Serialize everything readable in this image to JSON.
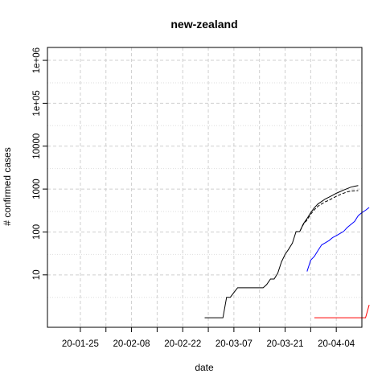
{
  "chart_data": {
    "type": "line",
    "title": "new-zealand",
    "xlabel": "date",
    "ylabel": "# confirmed cases",
    "x_axis": {
      "type": "date",
      "range": [
        "2020-01-16",
        "2020-04-11"
      ],
      "ticks": [
        {
          "value": "2020-01-25",
          "label": "20-01-25"
        },
        {
          "value": "2020-02-08",
          "label": "20-02-08"
        },
        {
          "value": "2020-02-22",
          "label": "20-02-22"
        },
        {
          "value": "2020-03-07",
          "label": "20-03-07"
        },
        {
          "value": "2020-03-21",
          "label": "20-03-21"
        },
        {
          "value": "2020-04-04",
          "label": "20-04-04"
        }
      ],
      "minor_ticks": [
        "2020-02-01",
        "2020-02-15",
        "2020-02-29",
        "2020-03-14",
        "2020-03-28"
      ]
    },
    "y_axis": {
      "scale": "log10",
      "range": [
        0.6,
        2000000
      ],
      "ticks": [
        {
          "value": 10,
          "label": "10"
        },
        {
          "value": 100,
          "label": "100"
        },
        {
          "value": 1000,
          "label": "1000"
        },
        {
          "value": 10000,
          "label": "10000"
        },
        {
          "value": 100000,
          "label": "1e+05"
        },
        {
          "value": 1000000,
          "label": "1e+06"
        }
      ],
      "minor_grid": [
        3,
        30,
        300,
        3000,
        30000,
        300000
      ]
    },
    "grid": true,
    "series": [
      {
        "color": "#000000",
        "style": "solid",
        "points": [
          [
            "2020-02-28",
            1
          ],
          [
            "2020-03-04",
            1
          ],
          [
            "2020-03-05",
            3
          ],
          [
            "2020-03-06",
            3
          ],
          [
            "2020-03-08",
            5
          ],
          [
            "2020-03-15",
            5
          ],
          [
            "2020-03-16",
            6
          ],
          [
            "2020-03-17",
            8
          ],
          [
            "2020-03-18",
            8
          ],
          [
            "2020-03-19",
            11
          ],
          [
            "2020-03-20",
            20
          ],
          [
            "2020-03-21",
            30
          ],
          [
            "2020-03-22",
            40
          ],
          [
            "2020-03-23",
            55
          ],
          [
            "2020-03-24",
            102
          ],
          [
            "2020-03-25",
            102
          ],
          [
            "2020-03-26",
            155
          ],
          [
            "2020-03-27",
            205
          ],
          [
            "2020-03-28",
            283
          ],
          [
            "2020-03-29",
            368
          ],
          [
            "2020-03-30",
            451
          ],
          [
            "2020-03-31",
            514
          ],
          [
            "2020-04-01",
            589
          ],
          [
            "2020-04-02",
            647
          ],
          [
            "2020-04-03",
            717
          ],
          [
            "2020-04-04",
            797
          ],
          [
            "2020-04-05",
            868
          ],
          [
            "2020-04-06",
            950
          ],
          [
            "2020-04-07",
            1025
          ],
          [
            "2020-04-08",
            1110
          ],
          [
            "2020-04-09",
            1160
          ],
          [
            "2020-04-10",
            1210
          ]
        ]
      },
      {
        "color": "#000000",
        "style": "dashed",
        "points": [
          [
            "2020-03-24",
            102
          ],
          [
            "2020-03-25",
            102
          ],
          [
            "2020-03-26",
            150
          ],
          [
            "2020-03-27",
            190
          ],
          [
            "2020-03-28",
            258
          ],
          [
            "2020-03-29",
            330
          ],
          [
            "2020-03-30",
            400
          ],
          [
            "2020-03-31",
            450
          ],
          [
            "2020-04-01",
            505
          ],
          [
            "2020-04-02",
            550
          ],
          [
            "2020-04-03",
            612
          ],
          [
            "2020-04-04",
            675
          ],
          [
            "2020-04-05",
            740
          ],
          [
            "2020-04-06",
            800
          ],
          [
            "2020-04-07",
            860
          ],
          [
            "2020-04-08",
            900
          ],
          [
            "2020-04-09",
            910
          ],
          [
            "2020-04-10",
            920
          ]
        ]
      },
      {
        "color": "#0000ff",
        "style": "solid",
        "points": [
          [
            "2020-03-27",
            12
          ],
          [
            "2020-03-28",
            22
          ],
          [
            "2020-03-29",
            27
          ],
          [
            "2020-03-30",
            37
          ],
          [
            "2020-03-31",
            50
          ],
          [
            "2020-04-01",
            56
          ],
          [
            "2020-04-02",
            63
          ],
          [
            "2020-04-03",
            74
          ],
          [
            "2020-04-04",
            82
          ],
          [
            "2020-04-05",
            92
          ],
          [
            "2020-04-06",
            103
          ],
          [
            "2020-04-07",
            127
          ],
          [
            "2020-04-08",
            150
          ],
          [
            "2020-04-09",
            176
          ],
          [
            "2020-04-10",
            240
          ],
          [
            "2020-04-11",
            282
          ],
          [
            "2020-04-12",
            320
          ],
          [
            "2020-04-13",
            373
          ]
        ]
      },
      {
        "color": "#ff0000",
        "style": "solid",
        "points": [
          [
            "2020-03-29",
            1
          ],
          [
            "2020-04-12",
            1
          ],
          [
            "2020-04-13",
            2
          ]
        ]
      }
    ]
  }
}
